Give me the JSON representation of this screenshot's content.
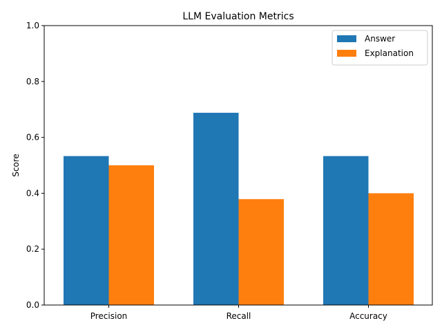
{
  "chart_data": {
    "type": "bar",
    "title": "LLM Evaluation Metrics",
    "xlabel": "",
    "ylabel": "Score",
    "ylim": [
      0,
      1.0
    ],
    "yticks": [
      "0.0",
      "0.2",
      "0.4",
      "0.6",
      "0.8",
      "1.0"
    ],
    "ytick_values": [
      0,
      0.2,
      0.4,
      0.6,
      0.8,
      1.0
    ],
    "categories": [
      "Precision",
      "Recall",
      "Accuracy"
    ],
    "series": [
      {
        "name": "Answer",
        "color": "#1f77b4",
        "values": [
          0.533,
          0.688,
          0.533
        ]
      },
      {
        "name": "Explanation",
        "color": "#ff7f0e",
        "values": [
          0.5,
          0.379,
          0.4
        ]
      }
    ],
    "legend_position": "top-right",
    "grid": false
  }
}
